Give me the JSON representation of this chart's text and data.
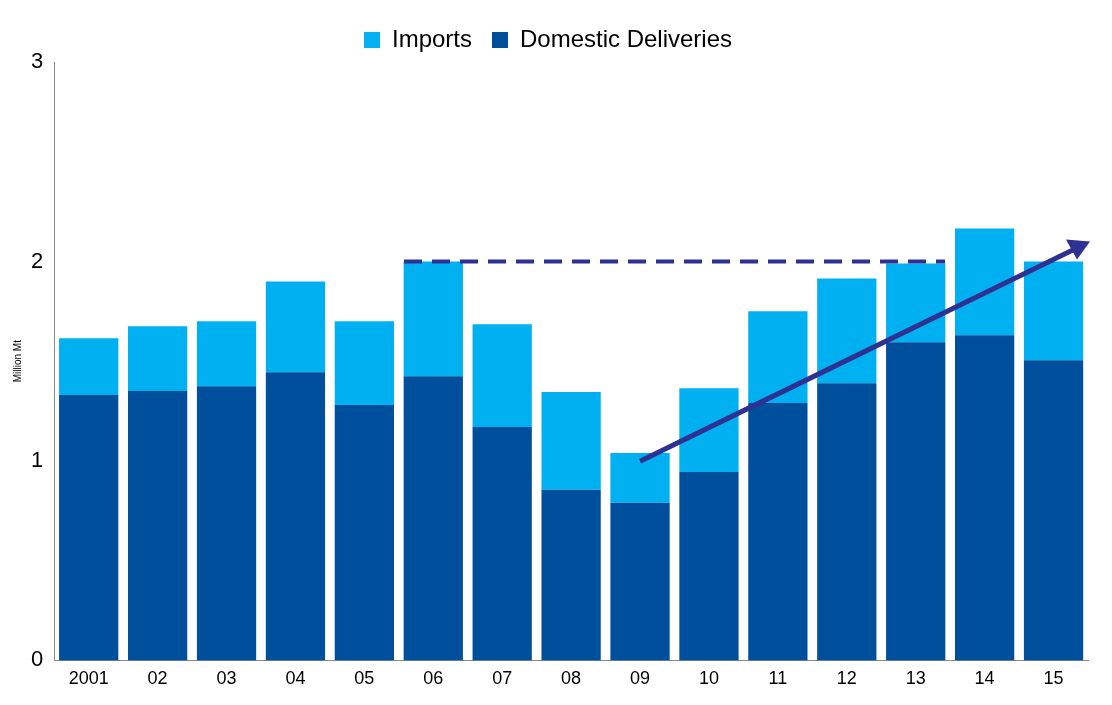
{
  "chart_data": {
    "type": "bar",
    "ylabel": "Million Mt",
    "categories": [
      "2001",
      "02",
      "03",
      "04",
      "05",
      "06",
      "07",
      "08",
      "09",
      "10",
      "11",
      "12",
      "13",
      "14",
      "15"
    ],
    "stacked": true,
    "series": [
      {
        "name": "Domestic Deliveries",
        "color": "#004f9c",
        "values": [
          1.33,
          1.35,
          1.375,
          1.445,
          1.28,
          1.425,
          1.17,
          0.855,
          0.79,
          0.945,
          1.29,
          1.39,
          1.595,
          1.63,
          1.505
        ]
      },
      {
        "name": "Imports",
        "color": "#00b0f0",
        "values": [
          0.285,
          0.325,
          0.325,
          0.455,
          0.42,
          0.575,
          0.515,
          0.49,
          0.25,
          0.42,
          0.46,
          0.525,
          0.395,
          0.535,
          0.495
        ]
      }
    ],
    "ylim": [
      0,
      3
    ],
    "yticks": [
      0,
      1,
      2,
      3
    ],
    "grid": false,
    "legend": "top",
    "ref_lines": [
      {
        "axis": "y",
        "value": 2,
        "color": "#2e3192",
        "line_style": "dashed"
      }
    ]
  }
}
